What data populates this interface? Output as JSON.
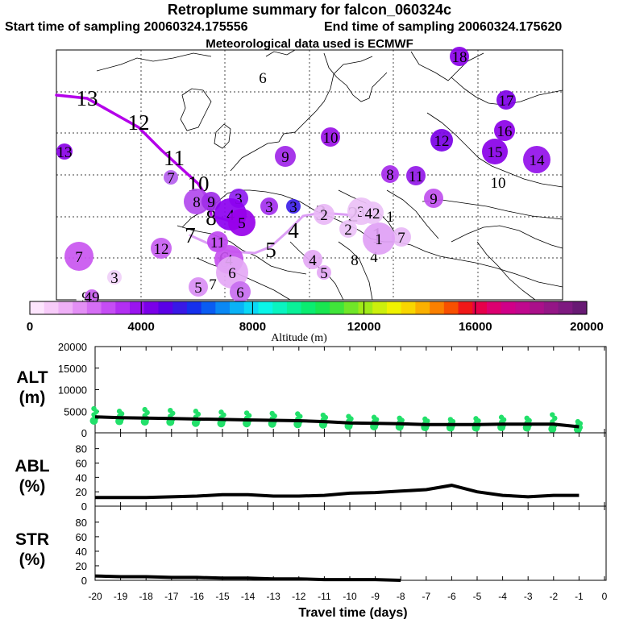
{
  "header": {
    "title": "Retroplume summary for falcon_060324c",
    "start": "Start time of sampling 20060324.175556",
    "end": "End time of sampling 20060324.175620",
    "met": "Meteorological data used is ECMWF"
  },
  "colorbar": {
    "label": "Altitude (m)",
    "ticks": [
      "0",
      "4000",
      "8000",
      "12000",
      "16000",
      "20000"
    ],
    "colors": [
      "#fde5fd",
      "#f7cbf9",
      "#efb0f7",
      "#e38ff5",
      "#d56ef4",
      "#c54df4",
      "#b22ff2",
      "#9a14ef",
      "#7a00e8",
      "#5a00e6",
      "#3818e6",
      "#1530ec",
      "#0a5cf2",
      "#0a88f4",
      "#0ab2f6",
      "#0ad8f6",
      "#0af5e8",
      "#0af4c0",
      "#0af098",
      "#0aec70",
      "#18e650",
      "#40e43a",
      "#70e628",
      "#a0ea18",
      "#ccef0c",
      "#f0f200",
      "#f8d600",
      "#fab000",
      "#fa8000",
      "#f85000",
      "#f01818",
      "#e6004a",
      "#dc0070",
      "#d00088",
      "#c0088e",
      "#aa108a",
      "#941686",
      "#7e1a80",
      "#681a74"
    ]
  },
  "map_labels": [
    {
      "t": "13",
      "size": "l",
      "c": "#9b00e6"
    },
    {
      "t": "12",
      "size": "l",
      "c": "#a400e8"
    },
    {
      "t": "11",
      "size": "l",
      "c": "#b000ec"
    },
    {
      "t": "10",
      "size": "l",
      "c": "#c233f2"
    },
    {
      "t": "9",
      "size": "l",
      "c": "#cc55f2"
    },
    {
      "t": "8",
      "size": "l",
      "c": "#d270f3"
    },
    {
      "t": "7",
      "size": "l",
      "c": "#d98cf3"
    },
    {
      "t": "6",
      "size": "l",
      "c": "#df9ef5"
    },
    {
      "t": "5",
      "size": "l",
      "c": "#e0a8f5"
    },
    {
      "t": "4",
      "size": "l",
      "c": "#d77ff3"
    },
    {
      "t": "3",
      "size": "l",
      "c": "#d072f2"
    },
    {
      "t": "2",
      "size": "l",
      "c": "#d98cf3"
    },
    {
      "t": "1",
      "size": "l",
      "c": "#e6b2f6"
    },
    {
      "t": "6",
      "size": "s",
      "c": "#ffffff"
    },
    {
      "t": "13",
      "size": "s",
      "c": "#8a00e6"
    },
    {
      "t": "7",
      "size": "s",
      "c": "#b560ee"
    },
    {
      "t": "8",
      "size": "s",
      "c": "#b24aee"
    },
    {
      "t": "9",
      "size": "s",
      "c": "#9f2ee8"
    },
    {
      "t": "3",
      "size": "s",
      "c": "#8f1ef0"
    },
    {
      "t": "4",
      "size": "s",
      "c": "#8c00f0"
    },
    {
      "t": "5",
      "size": "s",
      "c": "#9800ea"
    },
    {
      "t": "3",
      "size": "s",
      "c": "#a330ee"
    },
    {
      "t": "3",
      "size": "s",
      "c": "#3c20e8"
    },
    {
      "t": "2",
      "size": "s",
      "c": "#e9b8f6"
    },
    {
      "t": "12",
      "size": "s",
      "c": "#c75ef0"
    },
    {
      "t": "11",
      "size": "s",
      "c": "#bf47f0"
    },
    {
      "t": "7",
      "size": "s",
      "c": "#c956f0"
    },
    {
      "t": "3",
      "size": "s",
      "c": "#f0d0f8"
    },
    {
      "t": "4",
      "size": "s",
      "c": "#c650ef"
    },
    {
      "t": "6",
      "size": "s",
      "c": "#e4a8f5"
    },
    {
      "t": "6",
      "size": "s",
      "c": "#c86ef0"
    },
    {
      "t": "5",
      "size": "s",
      "c": "#d98ef4"
    },
    {
      "t": "7",
      "size": "s",
      "c": "#e0a4f5"
    },
    {
      "t": "9",
      "size": "s",
      "c": "#ffffff"
    },
    {
      "t": "49",
      "size": "s",
      "c": "#c95ef0"
    },
    {
      "t": "9",
      "size": "s",
      "c": "#a026e8"
    },
    {
      "t": "10",
      "size": "s",
      "c": "#9a10e6"
    },
    {
      "t": "8",
      "size": "s",
      "c": "#a62aea"
    },
    {
      "t": "11",
      "size": "s",
      "c": "#9218e8"
    },
    {
      "t": "12",
      "size": "s",
      "c": "#7a00e6"
    },
    {
      "t": "15",
      "size": "s",
      "c": "#8a00e8"
    },
    {
      "t": "14",
      "size": "s",
      "c": "#9410ea"
    },
    {
      "t": "16",
      "size": "s",
      "c": "#8c00e8"
    },
    {
      "t": "17",
      "size": "s",
      "c": "#7e00e6"
    },
    {
      "t": "18",
      "size": "s",
      "c": "#8a00e8"
    },
    {
      "t": "10",
      "size": "s",
      "c": "#ffffff"
    },
    {
      "t": "9",
      "size": "s",
      "c": "#c050ee"
    },
    {
      "t": "3",
      "size": "s",
      "c": "#ecc0f6"
    },
    {
      "t": "2",
      "size": "s",
      "c": "#ebc2f7"
    },
    {
      "t": "4",
      "size": "s",
      "c": "#e4a8f5"
    },
    {
      "t": "5",
      "size": "s",
      "c": "#e4a8f5"
    },
    {
      "t": "8",
      "size": "s",
      "c": "#ffffff"
    },
    {
      "t": "4",
      "size": "s",
      "c": "#ffffff"
    },
    {
      "t": "7",
      "size": "s",
      "c": "#e8b8f6"
    },
    {
      "t": "1",
      "size": "s",
      "c": "#e0a0f5"
    },
    {
      "t": "42",
      "size": "s",
      "c": "#ecc2f7"
    },
    {
      "t": "1",
      "size": "s",
      "c": "#ffffff"
    }
  ],
  "panels": {
    "alt": {
      "label1": "ALT",
      "label2": "(m)",
      "ticks": [
        "20000",
        "15000",
        "10000",
        "5000",
        "0"
      ]
    },
    "abl": {
      "label1": "ABL",
      "label2": "(%)",
      "ticks": [
        "80",
        "60",
        "40",
        "20",
        "0"
      ]
    },
    "str": {
      "label1": "STR",
      "label2": "(%)",
      "ticks": [
        "80",
        "60",
        "40",
        "20",
        "0"
      ]
    }
  },
  "chart_data": [
    {
      "type": "line",
      "title": "ALT (m)",
      "xlabel": "Travel time (days)",
      "ylabel": "ALT (m)",
      "ylim": [
        0,
        20000
      ],
      "x": [
        -20,
        -19,
        -18,
        -17,
        -16,
        -15,
        -14,
        -13,
        -12,
        -11,
        -10,
        -9,
        -8,
        -7,
        -6,
        -5,
        -4,
        -3,
        -2,
        -1
      ],
      "values": [
        3700,
        3500,
        3400,
        3300,
        3200,
        3100,
        3000,
        2900,
        2800,
        2600,
        2300,
        2200,
        2100,
        1900,
        1900,
        1900,
        2000,
        2000,
        2000,
        1400
      ],
      "scatter_ranges": [
        [
          2800,
          5600
        ],
        [
          2700,
          5000
        ],
        [
          2600,
          5400
        ],
        [
          2500,
          5200
        ],
        [
          2300,
          5000
        ],
        [
          2200,
          4800
        ],
        [
          2200,
          4600
        ],
        [
          2100,
          4500
        ],
        [
          2000,
          4400
        ],
        [
          1900,
          4100
        ],
        [
          1600,
          3800
        ],
        [
          1500,
          3600
        ],
        [
          1400,
          3400
        ],
        [
          1300,
          3200
        ],
        [
          1200,
          3100
        ],
        [
          1200,
          3300
        ],
        [
          1300,
          3600
        ],
        [
          1200,
          3400
        ],
        [
          900,
          4200
        ],
        [
          800,
          2600
        ]
      ]
    },
    {
      "type": "line",
      "title": "ABL (%)",
      "ylabel": "ABL (%)",
      "ylim": [
        0,
        100
      ],
      "x": [
        -20,
        -19,
        -18,
        -17,
        -16,
        -15,
        -14,
        -13,
        -12,
        -11,
        -10,
        -9,
        -8,
        -7,
        -6,
        -5,
        -4,
        -3,
        -2,
        -1
      ],
      "values": [
        12,
        12,
        12,
        13,
        14,
        16,
        16,
        14,
        14,
        15,
        18,
        19,
        21,
        23,
        29,
        20,
        15,
        13,
        15,
        15
      ]
    },
    {
      "type": "line",
      "title": "STR (%)",
      "ylabel": "STR (%)",
      "ylim": [
        0,
        100
      ],
      "x": [
        -20,
        -19,
        -18,
        -17,
        -16,
        -15,
        -14,
        -13,
        -12,
        -11,
        -10,
        -9,
        -8
      ],
      "values": [
        6,
        5,
        5,
        4,
        4,
        3,
        3,
        2,
        2,
        1,
        1,
        1,
        0
      ]
    }
  ],
  "xaxis": {
    "ticks": [
      "-20",
      "-19",
      "-18",
      "-17",
      "-16",
      "-15",
      "-14",
      "-13",
      "-12",
      "-11",
      "-10",
      "-9",
      "-8",
      "-7",
      "-6",
      "-5",
      "-4",
      "-3",
      "-2",
      "-1",
      "0"
    ],
    "label": "Travel time (days)"
  }
}
